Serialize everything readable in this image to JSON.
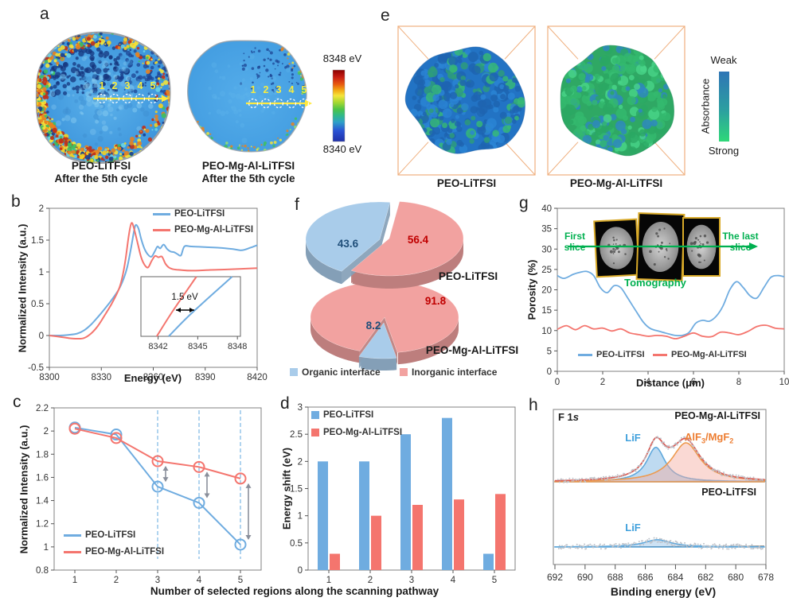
{
  "panels": {
    "a": {
      "label": "a",
      "maps": [
        {
          "name": "PEO-LiTFSI",
          "cycle": "After the 5th cycle"
        },
        {
          "name": "PEO-Mg-Al-LiTFSI",
          "cycle": "After the 5th cycle"
        }
      ],
      "scan_labels": [
        "1",
        "2",
        "3",
        "4",
        "5"
      ],
      "colorbar": {
        "top": "8348 eV",
        "bottom": "8340 eV"
      }
    },
    "e": {
      "label": "e",
      "captions": [
        "PEO-LiTFSI",
        "PEO-Mg-Al-LiTFSI"
      ],
      "colorbar": {
        "top": "Weak",
        "bottom": "Strong",
        "axis": "Absorbance"
      }
    },
    "b": {
      "label": "b"
    },
    "c": {
      "label": "c"
    },
    "d": {
      "label": "d"
    },
    "f": {
      "label": "f"
    },
    "g": {
      "label": "g",
      "annotations": {
        "first": "First slice",
        "last": "The last slice",
        "caption": "Tomography"
      }
    },
    "h": {
      "label": "h"
    }
  },
  "chart_data": [
    {
      "id": "b",
      "type": "line",
      "xlabel": "Energy (eV)",
      "ylabel": "Normalized Intensity (a.u.)",
      "xlim": [
        8300,
        8420
      ],
      "ylim": [
        -0.5,
        2
      ],
      "xticks": [
        8300,
        8330,
        8360,
        8390,
        8420
      ],
      "yticks": [
        -0.5,
        0,
        0.5,
        1,
        1.5,
        2
      ],
      "series": [
        {
          "name": "PEO-LiTFSI",
          "color": "#6FACE0",
          "points": [
            [
              8300,
              0
            ],
            [
              8306,
              0
            ],
            [
              8311,
              0.01
            ],
            [
              8316,
              0.03
            ],
            [
              8320,
              0.08
            ],
            [
              8324,
              0.17
            ],
            [
              8328,
              0.29
            ],
            [
              8332,
              0.42
            ],
            [
              8336,
              0.56
            ],
            [
              8340,
              0.72
            ],
            [
              8343,
              0.9
            ],
            [
              8345,
              1.08
            ],
            [
              8347,
              1.35
            ],
            [
              8349,
              1.66
            ],
            [
              8350,
              1.74
            ],
            [
              8351.5,
              1.68
            ],
            [
              8353,
              1.52
            ],
            [
              8355,
              1.36
            ],
            [
              8357,
              1.27
            ],
            [
              8359,
              1.24
            ],
            [
              8361,
              1.33
            ],
            [
              8362.5,
              1.4
            ],
            [
              8364,
              1.37
            ],
            [
              8366,
              1.43
            ],
            [
              8368,
              1.36
            ],
            [
              8370,
              1.32
            ],
            [
              8372,
              1.31
            ],
            [
              8374,
              1.28
            ],
            [
              8376,
              1.26
            ],
            [
              8378,
              1.4
            ],
            [
              8382,
              1.4
            ],
            [
              8390,
              1.39
            ],
            [
              8398,
              1.38
            ],
            [
              8406,
              1.36
            ],
            [
              8411,
              1.34
            ],
            [
              8416,
              1.38
            ],
            [
              8420,
              1.42
            ]
          ]
        },
        {
          "name": "PEO-Mg-Al-LiTFSI",
          "color": "#F4756E",
          "points": [
            [
              8300,
              0
            ],
            [
              8306,
              -0.02
            ],
            [
              8311,
              -0.04
            ],
            [
              8316,
              -0.05
            ],
            [
              8320,
              -0.04
            ],
            [
              8324,
              0.03
            ],
            [
              8328,
              0.15
            ],
            [
              8332,
              0.32
            ],
            [
              8336,
              0.5
            ],
            [
              8340,
              0.72
            ],
            [
              8342,
              0.9
            ],
            [
              8344,
              1.2
            ],
            [
              8346,
              1.6
            ],
            [
              8347.5,
              1.77
            ],
            [
              8349,
              1.67
            ],
            [
              8351,
              1.45
            ],
            [
              8353,
              1.23
            ],
            [
              8355,
              1.11
            ],
            [
              8357,
              1.07
            ],
            [
              8359,
              1.17
            ],
            [
              8361,
              1.25
            ],
            [
              8363,
              1.23
            ],
            [
              8365,
              1.24
            ],
            [
              8367,
              1.13
            ],
            [
              8369,
              1.07
            ],
            [
              8372,
              1.04
            ],
            [
              8376,
              1.03
            ],
            [
              8382,
              1.02
            ],
            [
              8392,
              1.03
            ],
            [
              8404,
              1.04
            ],
            [
              8420,
              1.06
            ]
          ]
        }
      ],
      "inset": {
        "xticks": [
          8342,
          8345,
          8348
        ],
        "annotation": "1.5 eV",
        "red_edge": [
          [
            8341.9,
            0
          ],
          [
            8343.1,
            0.42
          ],
          [
            8344.9,
            1
          ]
        ],
        "blue_edge": [
          [
            8342.8,
            0
          ],
          [
            8344.5,
            0.38
          ],
          [
            8347.6,
            1
          ]
        ]
      }
    },
    {
      "id": "c",
      "type": "line",
      "ylabel": "Normalized Intensity (a.u.)",
      "ylim": [
        0.8,
        2.2
      ],
      "yticks": [
        0.8,
        1,
        1.2,
        1.4,
        1.6,
        1.8,
        2,
        2.2
      ],
      "categories": [
        1,
        2,
        3,
        4,
        5
      ],
      "series": [
        {
          "name": "PEO-LiTFSI",
          "color": "#6FACE0",
          "values": [
            2.03,
            1.97,
            1.52,
            1.38,
            1.02
          ]
        },
        {
          "name": "PEO-Mg-Al-LiTFSI",
          "color": "#F4756E",
          "values": [
            2.02,
            1.94,
            1.74,
            1.69,
            1.59
          ]
        }
      ],
      "dashed_guides_at": [
        3,
        4,
        5
      ]
    },
    {
      "id": "d",
      "type": "bar",
      "ylabel": "Energy shift (eV)",
      "xlabel_shared": "Number of selected regions along the scanning pathway",
      "ylim": [
        0,
        3
      ],
      "yticks": [
        0,
        0.5,
        1,
        1.5,
        2,
        2.5,
        3
      ],
      "categories": [
        1,
        2,
        3,
        4,
        5
      ],
      "series": [
        {
          "name": "PEO-LiTFSI",
          "color": "#6FACE0",
          "values": [
            2,
            2,
            2.5,
            2.8,
            0.3
          ]
        },
        {
          "name": "PEO-Mg-Al-LiTFSI",
          "color": "#F4756E",
          "values": [
            0.3,
            1,
            1.2,
            1.3,
            1.4
          ]
        }
      ]
    },
    {
      "id": "f",
      "type": "pie",
      "pies": [
        {
          "label": "PEO-LiTFSI",
          "slices": [
            {
              "name": "Organic interface",
              "value": 43.6
            },
            {
              "name": "Inorganic interface",
              "value": 56.4
            }
          ]
        },
        {
          "label": "PEO-Mg-Al-LiTFSI",
          "slices": [
            {
              "name": "Organic interface",
              "value": 8.2
            },
            {
              "name": "Inorganic interface",
              "value": 91.8
            }
          ]
        }
      ],
      "colors": {
        "organic": "#A9CCEA",
        "inorganic": "#F2A2A0"
      },
      "value_colors": {
        "organic": "#1F4E79",
        "inorganic": "#C00000"
      },
      "legend": [
        "Organic interface",
        "Inorganic interface"
      ]
    },
    {
      "id": "g",
      "type": "line",
      "xlabel": "Distance (μm)",
      "ylabel": "Porosity (%)",
      "xlim": [
        0,
        10
      ],
      "ylim": [
        0,
        40
      ],
      "xticks": [
        0,
        2,
        4,
        6,
        8,
        10
      ],
      "yticks": [
        0,
        5,
        10,
        15,
        20,
        25,
        30,
        35,
        40
      ],
      "series": [
        {
          "name": "PEO-LiTFSI",
          "color": "#6FACE0",
          "points": [
            [
              0,
              23.5
            ],
            [
              0.3,
              22.8
            ],
            [
              0.7,
              23.8
            ],
            [
              1,
              24.3
            ],
            [
              1.3,
              24.5
            ],
            [
              1.6,
              23.5
            ],
            [
              1.9,
              20.5
            ],
            [
              2.2,
              19.3
            ],
            [
              2.5,
              21
            ],
            [
              2.8,
              20.5
            ],
            [
              3.1,
              18
            ],
            [
              3.5,
              14.5
            ],
            [
              3.8,
              12
            ],
            [
              4.1,
              10.5
            ],
            [
              4.5,
              9.8
            ],
            [
              4.9,
              9.2
            ],
            [
              5.2,
              8.8
            ],
            [
              5.5,
              8.8
            ],
            [
              5.8,
              9.5
            ],
            [
              6.1,
              11.8
            ],
            [
              6.4,
              12.5
            ],
            [
              6.7,
              12.3
            ],
            [
              7,
              13.5
            ],
            [
              7.3,
              16
            ],
            [
              7.6,
              20
            ],
            [
              7.9,
              22
            ],
            [
              8.2,
              20.5
            ],
            [
              8.5,
              18.5
            ],
            [
              8.8,
              18
            ],
            [
              9.1,
              20.5
            ],
            [
              9.4,
              23
            ],
            [
              9.7,
              23.5
            ],
            [
              10,
              23.2
            ]
          ]
        },
        {
          "name": "PEO-Mg-Al-LiTFSI",
          "color": "#F4756E",
          "points": [
            [
              0,
              10.3
            ],
            [
              0.4,
              11.2
            ],
            [
              0.8,
              10.2
            ],
            [
              1.2,
              11.2
            ],
            [
              1.6,
              10.4
            ],
            [
              2,
              10.6
            ],
            [
              2.4,
              9.9
            ],
            [
              2.8,
              10.4
            ],
            [
              3.2,
              9.4
            ],
            [
              3.6,
              9
            ],
            [
              4,
              8.6
            ],
            [
              4.4,
              8.8
            ],
            [
              4.8,
              8.6
            ],
            [
              5.2,
              8
            ],
            [
              5.6,
              8.6
            ],
            [
              6,
              9.4
            ],
            [
              6.4,
              8.6
            ],
            [
              6.8,
              8.5
            ],
            [
              7.2,
              9.6
            ],
            [
              7.6,
              9.4
            ],
            [
              8,
              9
            ],
            [
              8.4,
              9.8
            ],
            [
              8.8,
              11
            ],
            [
              9.2,
              11.3
            ],
            [
              9.6,
              10.6
            ],
            [
              10,
              10.4
            ]
          ]
        }
      ]
    },
    {
      "id": "h",
      "type": "xps",
      "xlabel": "Binding energy (eV)",
      "xlim": [
        692,
        678
      ],
      "xticks": [
        692,
        690,
        688,
        686,
        684,
        682,
        680,
        678
      ],
      "corner_label": "F 1s",
      "spectra": [
        {
          "sample": "PEO-Mg-Al-LiTFSI",
          "envelope_color": "#D95C55",
          "peaks": [
            {
              "name": "LiF",
              "center": 685.3,
              "height": 0.62,
              "width": 0.75,
              "color": "#5FA8DC",
              "fill": "rgba(111,172,224,0.45)"
            },
            {
              "name": "AlF3/MgF2",
              "center": 683.3,
              "height": 0.7,
              "width": 1.15,
              "color": "#ED9A4F",
              "fill": "rgba(244,170,160,0.45)"
            }
          ]
        },
        {
          "sample": "PEO-LiTFSI",
          "peaks": [
            {
              "name": "LiF",
              "center": 685.2,
              "height": 0.13,
              "width": 1.1,
              "color": "#5FA8DC",
              "fill": "rgba(111,172,224,0.35)"
            }
          ]
        }
      ],
      "label_colors": {
        "LiF": "#3FA0DC",
        "AlF3": "#ED7D31"
      }
    }
  ]
}
